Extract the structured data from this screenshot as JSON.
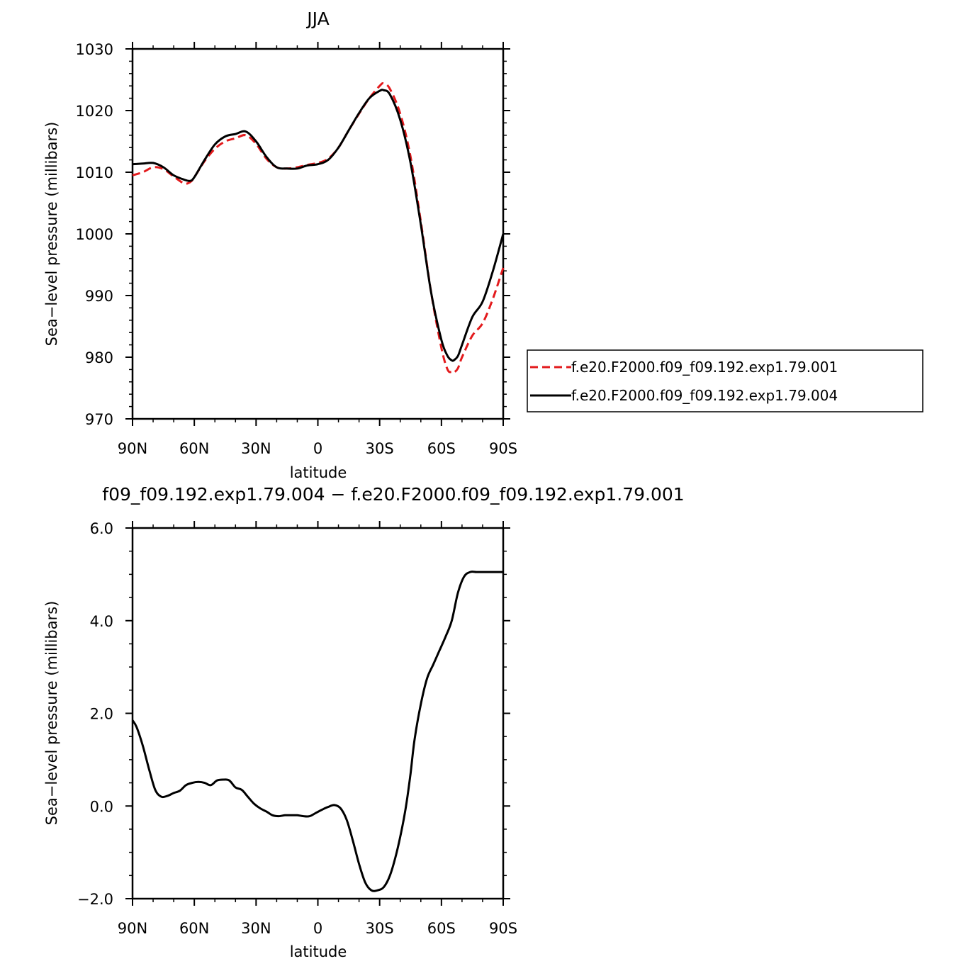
{
  "chart_data": [
    {
      "type": "line",
      "title": "JJA",
      "xlabel": "latitude",
      "ylabel": "Sea−level pressure (millibars)",
      "x_ticks": [
        -90,
        -60,
        -30,
        0,
        30,
        60,
        90
      ],
      "x_tick_labels": [
        "90N",
        "60N",
        "30N",
        "0",
        "30S",
        "60S",
        "90S"
      ],
      "y_ticks": [
        970,
        980,
        990,
        1000,
        1010,
        1020,
        1030
      ],
      "y_tick_labels": [
        "970",
        "980",
        "990",
        "1000",
        "1010",
        "1020",
        "1030"
      ],
      "xlim": [
        -90,
        90
      ],
      "ylim": [
        970,
        1030
      ],
      "grid": false,
      "legend_position": "right",
      "series": [
        {
          "name": "f.e20.F2000.f09_f09.192.exp1.79.001",
          "color": "#e31a1c",
          "dash": "dashed",
          "x": [
            -90,
            -85,
            -80,
            -75,
            -70,
            -65,
            -62,
            -60,
            -55,
            -50,
            -45,
            -40,
            -35,
            -30,
            -25,
            -20,
            -15,
            -10,
            -5,
            0,
            5,
            10,
            15,
            20,
            25,
            30,
            32,
            35,
            40,
            45,
            50,
            55,
            60,
            63,
            65,
            66,
            68,
            70,
            75,
            80,
            85,
            90
          ],
          "y": [
            1009.5,
            1010,
            1010.8,
            1010.5,
            1009.3,
            1008.2,
            1008.4,
            1009.2,
            1011.8,
            1013.8,
            1015,
            1015.5,
            1016,
            1014.6,
            1012.2,
            1010.8,
            1010.6,
            1010.8,
            1011.2,
            1011.5,
            1012.2,
            1014,
            1016.8,
            1019.5,
            1022,
            1024,
            1024.4,
            1023.5,
            1019.5,
            1012.5,
            1002,
            990.5,
            981.5,
            978,
            977.6,
            977.5,
            978.2,
            980,
            983.5,
            985.5,
            989.5,
            994.5
          ]
        },
        {
          "name": "f.e20.F2000.f09_f09.192.exp1.79.004",
          "color": "#000000",
          "dash": "solid",
          "x": [
            -90,
            -85,
            -80,
            -75,
            -70,
            -65,
            -62,
            -60,
            -55,
            -50,
            -45,
            -40,
            -35,
            -30,
            -25,
            -20,
            -15,
            -10,
            -5,
            0,
            5,
            10,
            15,
            20,
            25,
            30,
            32,
            35,
            40,
            45,
            50,
            55,
            60,
            63,
            65,
            66,
            68,
            70,
            75,
            80,
            85,
            90
          ],
          "y": [
            1011.3,
            1011.4,
            1011.5,
            1010.8,
            1009.5,
            1008.8,
            1008.6,
            1009.2,
            1012,
            1014.5,
            1015.8,
            1016.2,
            1016.6,
            1015,
            1012.5,
            1010.8,
            1010.6,
            1010.6,
            1011.1,
            1011.3,
            1012,
            1014,
            1016.8,
            1019.6,
            1022,
            1023.2,
            1023.3,
            1022.6,
            1018.5,
            1011.5,
            1001.5,
            990.5,
            982.8,
            980.2,
            979.5,
            979.5,
            980.2,
            982,
            986.5,
            989,
            994,
            1000
          ]
        }
      ]
    },
    {
      "type": "line",
      "title": "f09_f09.192.exp1.79.004 − f.e20.F2000.f09_f09.192.exp1.79.001",
      "xlabel": "latitude",
      "ylabel": "Sea−level pressure (millibars)",
      "x_ticks": [
        -90,
        -60,
        -30,
        0,
        30,
        60,
        90
      ],
      "x_tick_labels": [
        "90N",
        "60N",
        "30N",
        "0",
        "30S",
        "60S",
        "90S"
      ],
      "y_ticks": [
        -2,
        0,
        2,
        4,
        6
      ],
      "y_tick_labels": [
        "−2.0",
        "0.0",
        "2.0",
        "4.0",
        "6.0"
      ],
      "xlim": [
        -90,
        90
      ],
      "ylim": [
        -2,
        6
      ],
      "grid": false,
      "series": [
        {
          "color": "#000000",
          "dash": "solid",
          "x": [
            -90,
            -88,
            -85,
            -82,
            -79,
            -76,
            -73,
            -70,
            -67,
            -64,
            -61,
            -58,
            -55,
            -52,
            -49,
            -46,
            -43,
            -40,
            -37,
            -34,
            -31,
            -28,
            -25,
            -22,
            -19,
            -16,
            -13,
            -10,
            -7,
            -4,
            -1,
            2,
            5,
            8,
            11,
            14,
            17,
            20,
            23,
            26,
            29,
            32,
            35,
            38,
            41,
            43,
            45,
            47,
            50,
            53,
            56,
            59,
            62,
            65,
            68,
            71,
            74,
            77,
            80,
            83,
            86,
            88,
            90
          ],
          "y": [
            1.85,
            1.7,
            1.3,
            0.8,
            0.35,
            0.2,
            0.22,
            0.28,
            0.33,
            0.45,
            0.5,
            0.52,
            0.5,
            0.45,
            0.55,
            0.57,
            0.55,
            0.4,
            0.35,
            0.2,
            0.05,
            -0.05,
            -0.12,
            -0.2,
            -0.22,
            -0.2,
            -0.2,
            -0.2,
            -0.22,
            -0.22,
            -0.15,
            -0.08,
            -0.02,
            0.02,
            -0.05,
            -0.3,
            -0.75,
            -1.25,
            -1.65,
            -1.82,
            -1.82,
            -1.75,
            -1.5,
            -1.05,
            -0.45,
            0.05,
            0.7,
            1.45,
            2.2,
            2.75,
            3.05,
            3.35,
            3.65,
            4.0,
            4.6,
            4.95,
            5.05,
            5.05,
            5.05,
            5.05,
            5.05,
            5.05,
            5.05
          ]
        }
      ]
    }
  ]
}
